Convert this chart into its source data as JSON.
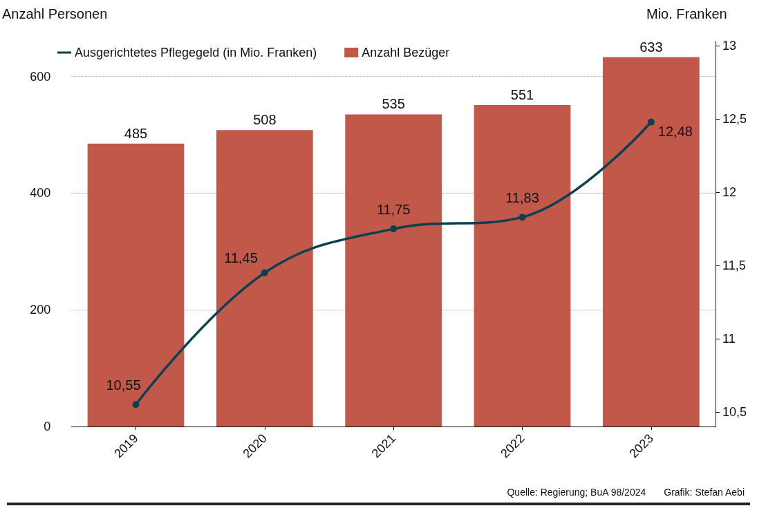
{
  "chart_data": {
    "type": "bar",
    "ylabel": "Anzahl Personen",
    "y2label": "Mio. Franken",
    "categories": [
      "2019",
      "2020",
      "2021",
      "2022",
      "2023"
    ],
    "series": [
      {
        "name": "Ausgerichtetes Pflegegeld (in Mio. Franken)",
        "type": "line",
        "axis": "y2",
        "color": "#0b3f52",
        "values": [
          10.55,
          11.45,
          11.75,
          11.83,
          12.48
        ],
        "value_labels": [
          "10,55",
          "11,45",
          "11,75",
          "11,83",
          "12,48"
        ]
      },
      {
        "name": "Anzahl Bezüger",
        "color": "#c25849",
        "values": [
          485,
          508,
          535,
          551,
          633
        ],
        "value_labels": [
          "485",
          "508",
          "535",
          "551",
          "633"
        ]
      }
    ],
    "ylim": [
      0,
      660
    ],
    "yticks": [
      0,
      200,
      400,
      600
    ],
    "y2lim": [
      10.4,
      13.03
    ],
    "y2ticks": [
      {
        "value": 10.5,
        "label": "10,5"
      },
      11,
      {
        "value": 11.5,
        "label": "11,5"
      },
      12,
      {
        "value": 12.5,
        "label": "12,5"
      },
      13
    ],
    "grid": "y",
    "legend": "top left",
    "marker": "circle",
    "annotations": [
      "Quelle: Regierung; BuA 98/2024",
      "Grafik: Stefan Aebi"
    ]
  }
}
